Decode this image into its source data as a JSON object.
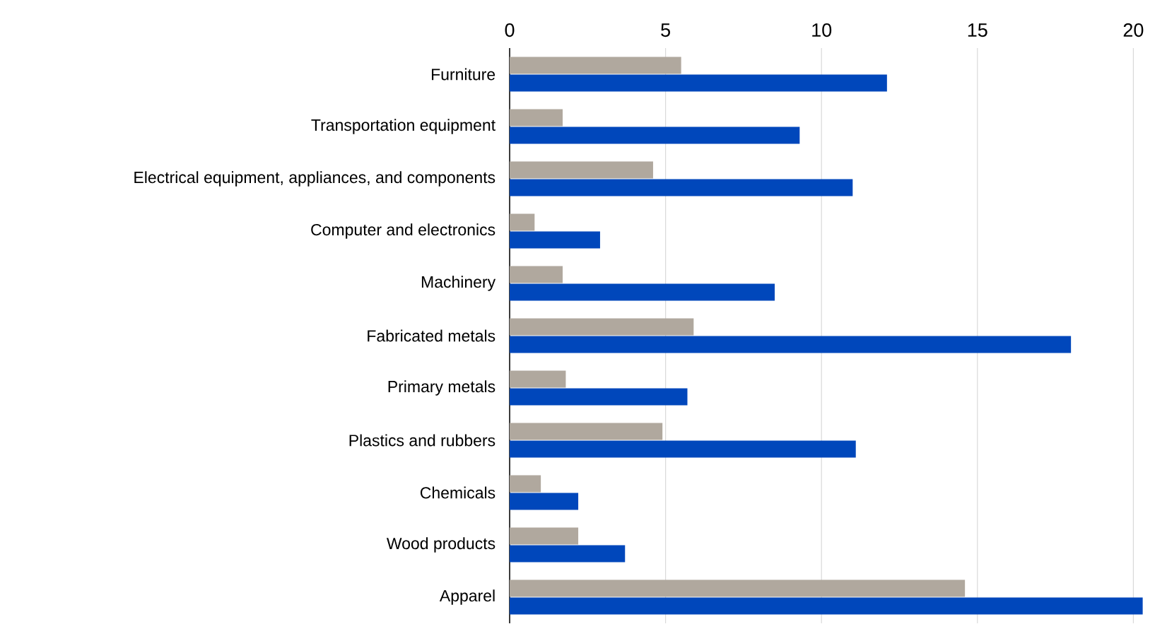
{
  "chart_data": {
    "type": "bar",
    "orientation": "horizontal",
    "categories": [
      "Furniture",
      "Transportation equipment",
      "Electrical equipment, appliances, and components",
      "Computer and electronics",
      "Machinery",
      "Fabricated metals",
      "Primary metals",
      "Plastics and rubbers",
      "Chemicals",
      "Wood products",
      "Apparel"
    ],
    "series": [
      {
        "color": "#b0a89e",
        "values": [
          5.5,
          1.7,
          4.6,
          0.8,
          1.7,
          5.9,
          1.8,
          4.9,
          1.0,
          2.2,
          14.6
        ]
      },
      {
        "color": "#0047bb",
        "values": [
          12.1,
          9.3,
          11.0,
          2.9,
          8.5,
          18.0,
          5.7,
          11.1,
          2.2,
          3.7,
          20.3
        ]
      }
    ],
    "xlim": [
      0,
      20.4
    ],
    "xticks": [
      0,
      5,
      10,
      15,
      20
    ],
    "grid": "x"
  }
}
